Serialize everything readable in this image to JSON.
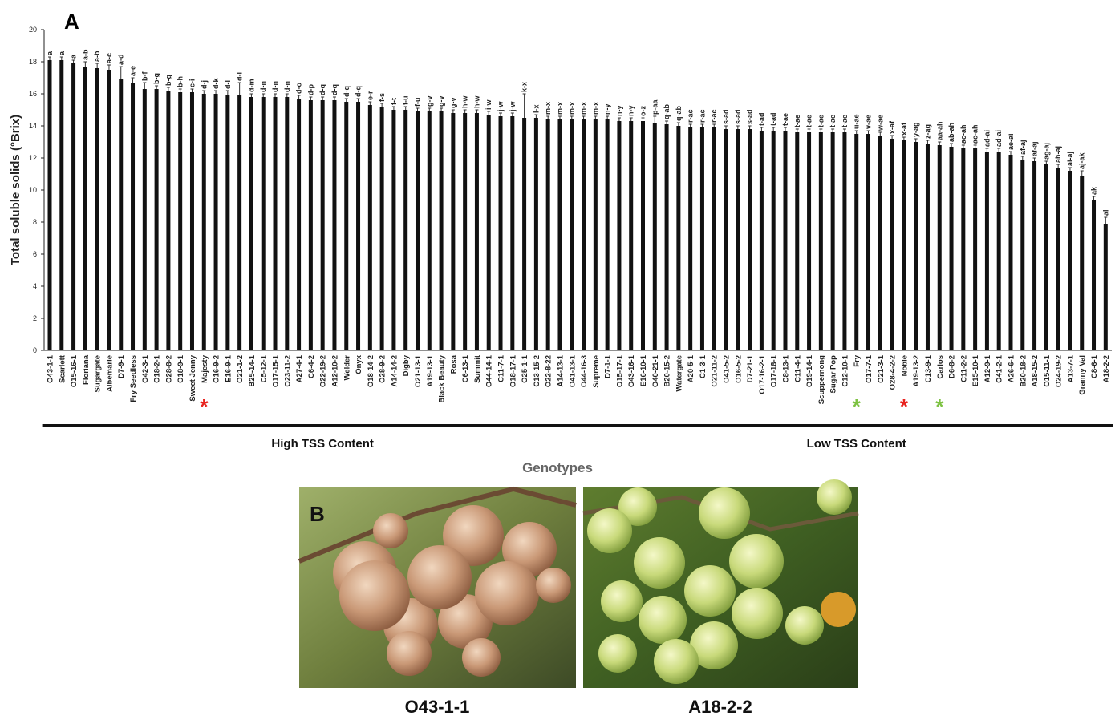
{
  "chart_data": {
    "type": "bar",
    "panel_label": "A",
    "y_label": "Total soluble solids (°Brix)",
    "x_label": "Genotypes",
    "color": "#111111",
    "ylim": [
      0,
      20
    ],
    "yticks": [
      0,
      2,
      4,
      6,
      8,
      10,
      12,
      14,
      16,
      18,
      20
    ],
    "categories": [
      "O43-1-1",
      "Scarlett",
      "O15-16-1",
      "Floriana",
      "Sugargate",
      "Albemarle",
      "D7-9-1",
      "Fry Seedless",
      "O42-3-1",
      "O18-2-1",
      "O28-8-2",
      "O18-9-1",
      "Sweet Jenny",
      "Majesty",
      "O16-9-2",
      "E16-9-1",
      "O21-1-2",
      "B25-14-1",
      "C5-12-1",
      "O17-15-1",
      "O23-11-2",
      "A27-4-1",
      "C6-4-2",
      "O22-19-2",
      "A12-10-2",
      "Welder",
      "Onyx",
      "O18-14-2",
      "O28-9-2",
      "A14-14-2",
      "Digby",
      "O21-13-1",
      "A19-13-1",
      "Black Beauty",
      "Rosa",
      "C6-13-1",
      "Summit",
      "O44-14-1",
      "C11-7-1",
      "O18-17-1",
      "O25-1-1",
      "C13-15-2",
      "O22-8-22",
      "A14-13-1",
      "O41-13-1",
      "O44-16-3",
      "Supreme",
      "D7-1-1",
      "O15-17-1",
      "O43-16-1",
      "E16-10-1",
      "O40-21-1",
      "B20-15-2",
      "Watergate",
      "A20-5-1",
      "C1-3-1",
      "O21-11-2",
      "O41-5-2",
      "O16-5-2",
      "D7-21-1",
      "O17-16-2-1",
      "O17-18-1",
      "C8-13-1",
      "C11-4-1",
      "O19-14-1",
      "Scuppernong",
      "Sugar Pop",
      "C12-10-1",
      "Fry",
      "O17-7-1",
      "O21-3-1",
      "O28-4-2-2",
      "Noble",
      "A19-13-2",
      "C13-9-1",
      "Carlos",
      "D6-8-2",
      "C11-2-2",
      "E15-10-1",
      "A12-9-1",
      "O41-2-1",
      "A26-6-1",
      "B20-18-2",
      "A18-15-2",
      "O15-11-1",
      "O24-19-2",
      "A13-7-1",
      "Granny Val",
      "C8-6-1",
      "A18-2-2"
    ],
    "values": [
      18.1,
      18.1,
      17.9,
      17.7,
      17.6,
      17.5,
      16.9,
      16.7,
      16.3,
      16.3,
      16.2,
      16.1,
      16.1,
      16.0,
      16.0,
      15.9,
      15.9,
      15.8,
      15.8,
      15.8,
      15.8,
      15.7,
      15.6,
      15.6,
      15.6,
      15.5,
      15.5,
      15.3,
      15.2,
      15.0,
      15.0,
      14.9,
      14.9,
      14.9,
      14.8,
      14.8,
      14.8,
      14.7,
      14.6,
      14.6,
      14.5,
      14.5,
      14.4,
      14.4,
      14.4,
      14.4,
      14.4,
      14.4,
      14.3,
      14.3,
      14.3,
      14.2,
      14.1,
      14.0,
      13.9,
      13.9,
      13.9,
      13.8,
      13.8,
      13.8,
      13.7,
      13.7,
      13.7,
      13.6,
      13.6,
      13.6,
      13.6,
      13.6,
      13.5,
      13.5,
      13.4,
      13.2,
      13.1,
      13.0,
      12.9,
      12.8,
      12.7,
      12.6,
      12.6,
      12.4,
      12.4,
      12.2,
      11.9,
      11.8,
      11.6,
      11.4,
      11.2,
      10.9,
      9.4,
      7.9
    ],
    "errors": [
      0.2,
      0.2,
      0.2,
      0.3,
      0.3,
      0.3,
      0.8,
      0.3,
      0.4,
      0.2,
      0.2,
      0.2,
      0.2,
      0.2,
      0.2,
      0.3,
      0.8,
      0.2,
      0.2,
      0.2,
      0.2,
      0.2,
      0.2,
      0.2,
      0.2,
      0.2,
      0.2,
      0.2,
      0.2,
      0.2,
      0.2,
      0.2,
      0.2,
      0.2,
      0.2,
      0.2,
      0.2,
      0.2,
      0.2,
      0.2,
      1.5,
      0.2,
      0.2,
      0.2,
      0.2,
      0.2,
      0.2,
      0.2,
      0.2,
      0.2,
      0.2,
      0.4,
      0.2,
      0.2,
      0.2,
      0.2,
      0.2,
      0.2,
      0.2,
      0.2,
      0.2,
      0.2,
      0.2,
      0.2,
      0.2,
      0.2,
      0.2,
      0.2,
      0.2,
      0.2,
      0.2,
      0.2,
      0.2,
      0.2,
      0.2,
      0.2,
      0.2,
      0.2,
      0.2,
      0.2,
      0.2,
      0.2,
      0.2,
      0.2,
      0.2,
      0.2,
      0.2,
      0.3,
      0.2,
      0.4
    ],
    "letters": [
      "a",
      "a",
      "a",
      "a-b",
      "a-b",
      "a-c",
      "a-d",
      "a-e",
      "b-f",
      "b-g",
      "b-g",
      "b-h",
      "c-i",
      "d-j",
      "d-k",
      "d-l",
      "d-l",
      "d-m",
      "d-n",
      "d-n",
      "d-n",
      "d-o",
      "d-p",
      "d-q",
      "d-q",
      "d-q",
      "d-q",
      "e-r",
      "f-s",
      "f-t",
      "f-u",
      "f-u",
      "g-v",
      "g-v",
      "g-v",
      "h-w",
      "h-w",
      "i-w",
      "j-w",
      "j-w",
      "k-x",
      "l-x",
      "m-x",
      "m-x",
      "m-x",
      "m-x",
      "m-x",
      "n-y",
      "n-y",
      "n-y",
      "o-z",
      "p-aa",
      "q-ab",
      "q-ab",
      "r-ac",
      "r-ac",
      "r-ac",
      "s-ad",
      "s-ad",
      "s-ad",
      "t-ad",
      "t-ad",
      "t-ae",
      "t-ae",
      "t-ae",
      "t-ae",
      "t-ae",
      "t-ae",
      "u-ae",
      "v-ae",
      "w-ae",
      "x-af",
      "x-af",
      "y-ag",
      "z-ag",
      "aa-ah",
      "ab-ah",
      "ac-ah",
      "ac-ah",
      "ad-ai",
      "ad-ai",
      "ae-ai",
      "af-aj",
      "af-aj",
      "ag-aj",
      "ah-aj",
      "ai-aj",
      "aj-ak",
      "ak",
      "al"
    ],
    "markers": {
      "symbol": "*",
      "colors": [
        null,
        null,
        null,
        null,
        null,
        null,
        null,
        null,
        null,
        null,
        null,
        null,
        null,
        "#e8231f",
        null,
        null,
        null,
        null,
        null,
        null,
        null,
        null,
        null,
        null,
        null,
        null,
        null,
        null,
        null,
        null,
        null,
        null,
        null,
        null,
        null,
        null,
        null,
        null,
        null,
        null,
        null,
        null,
        null,
        null,
        null,
        null,
        null,
        null,
        null,
        null,
        null,
        null,
        null,
        null,
        null,
        null,
        null,
        null,
        null,
        null,
        null,
        null,
        null,
        null,
        null,
        null,
        null,
        null,
        "#7dc242",
        null,
        null,
        null,
        "#e8231f",
        null,
        null,
        "#7dc242",
        null,
        null,
        null,
        null,
        null,
        null,
        null,
        null,
        null,
        null,
        null,
        null,
        null,
        null
      ]
    },
    "groups": [
      {
        "label": "High TSS Content",
        "from": "O43-1-1",
        "to": "Supreme"
      },
      {
        "label": "Low TSS Content",
        "from": "D7-1-1",
        "to": "A18-2-2"
      }
    ]
  },
  "panel_b": {
    "label": "B",
    "photos": [
      {
        "caption": "O43-1-1"
      },
      {
        "caption": "A18-2-2"
      }
    ]
  }
}
